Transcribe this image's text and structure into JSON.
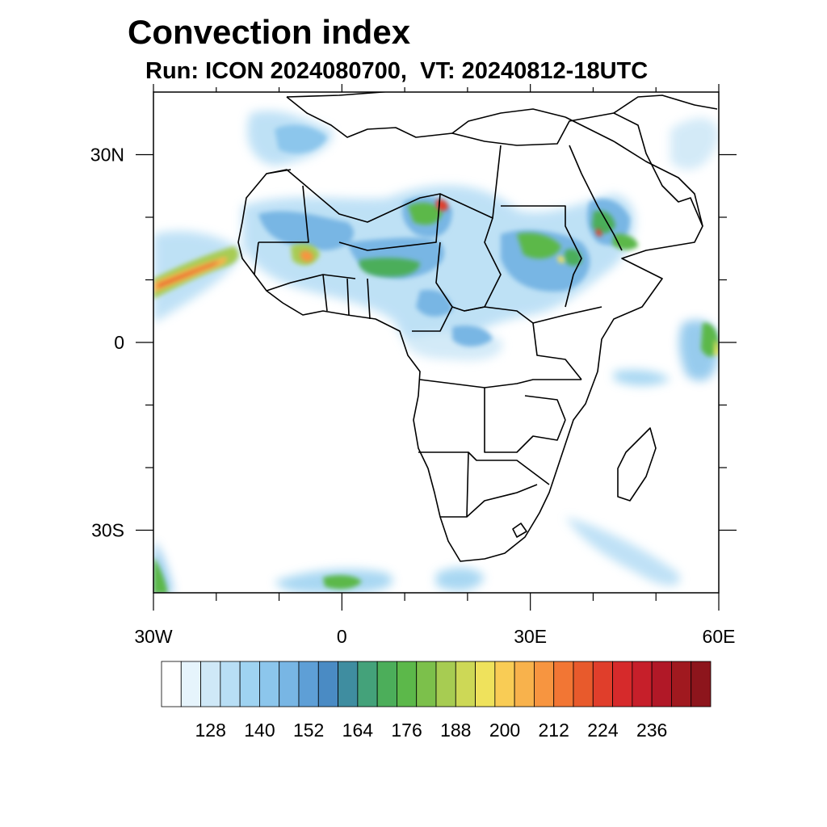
{
  "title": "Convection index",
  "subtitle": "Run: ICON 2024080700,  VT: 20240812-18UTC",
  "map": {
    "lon_range": [
      -30,
      60
    ],
    "lat_range": [
      -40,
      40
    ],
    "lon_ticks": [
      {
        "v": -30,
        "label": "30W"
      },
      {
        "v": 0,
        "label": "0"
      },
      {
        "v": 30,
        "label": "30E"
      },
      {
        "v": 60,
        "label": "60E"
      }
    ],
    "lat_ticks": [
      {
        "v": 30,
        "label": "30N"
      },
      {
        "v": 0,
        "label": "0"
      },
      {
        "v": -30,
        "label": "30S"
      }
    ],
    "minor_lon": [
      -20,
      -10,
      10,
      20,
      40,
      50
    ],
    "minor_lat": [
      20,
      10,
      -10,
      -20
    ],
    "boundary_color": "#000000"
  },
  "colorbar": {
    "labels": [
      "128",
      "140",
      "152",
      "164",
      "176",
      "188",
      "200",
      "212",
      "224",
      "236"
    ],
    "colors": [
      "#ffffff",
      "#e6f4fc",
      "#cfe8f7",
      "#b8def5",
      "#9fd3f1",
      "#8cc6ec",
      "#78b6e4",
      "#5e9fd6",
      "#4a8bc4",
      "#3f8da0",
      "#44a27a",
      "#4cae5a",
      "#5cb84a",
      "#7cc04b",
      "#a7cc52",
      "#cdd856",
      "#efe25c",
      "#f9cc55",
      "#f8b24c",
      "#f79540",
      "#f27634",
      "#e85a2c",
      "#e03e2b",
      "#d62a2b",
      "#c61f2a",
      "#b11827",
      "#a0191f",
      "#8d151c"
    ]
  },
  "features": [
    {
      "name": "atlantic-itcz-band",
      "color": "#f08030"
    },
    {
      "name": "sahel-band",
      "color": "#5cb84a"
    },
    {
      "name": "ethiopian-highlands",
      "color": "#4cae5a"
    },
    {
      "name": "indian-ocean-cell",
      "color": "#5cb84a"
    },
    {
      "name": "southern-ocean-front",
      "color": "#78b6e4"
    }
  ]
}
